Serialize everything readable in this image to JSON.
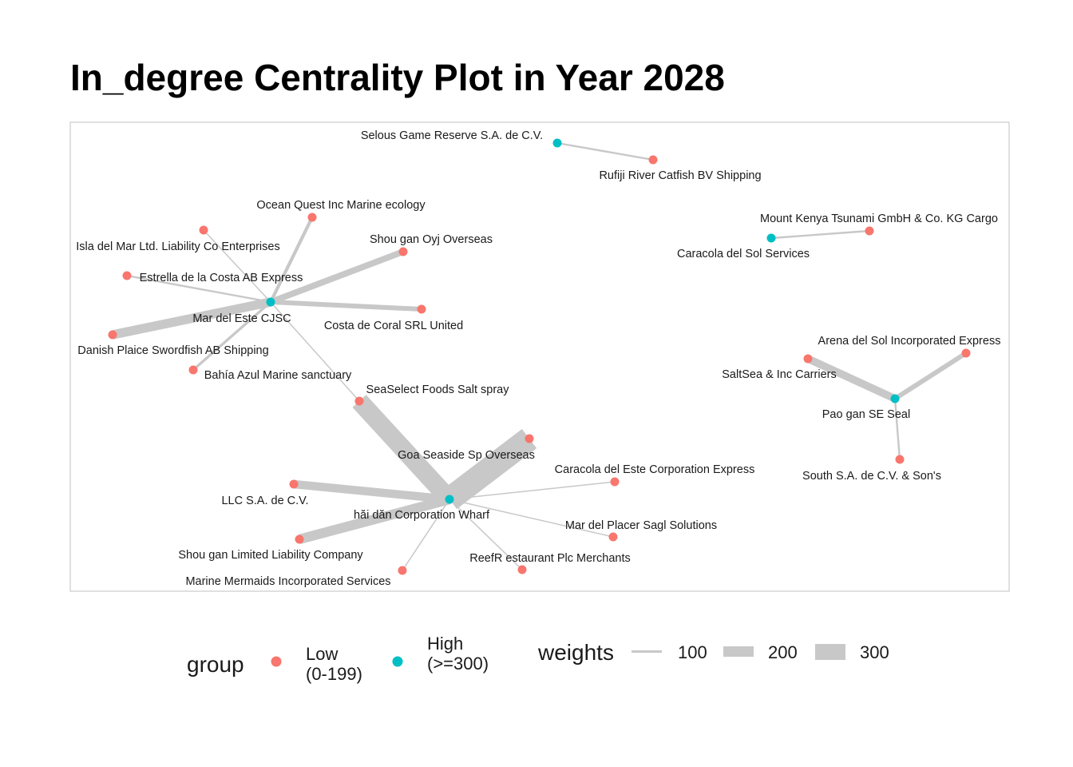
{
  "title": "In_degree Centrality Plot in Year 2028",
  "colors": {
    "low": "#F8766D",
    "high": "#00BFC4",
    "edge": "#C8C8C8",
    "panel_border": "#CCCCCC"
  },
  "network": {
    "nodes": [
      {
        "id": "selous",
        "label": "Selous Game Reserve  S.A. de C.V.",
        "group": "high"
      },
      {
        "id": "rufiji",
        "label": "Rufiji River  Catfish BV Shipping",
        "group": "low"
      },
      {
        "id": "mtkenya",
        "label": "Mount Kenya  Tsunami GmbH & Co. KG Cargo",
        "group": "low"
      },
      {
        "id": "caracola_sol",
        "label": "Caracola del Sol Services",
        "group": "high"
      },
      {
        "id": "ocean_quest",
        "label": "Ocean Quest Inc Marine ecology",
        "group": "low"
      },
      {
        "id": "isla",
        "label": "Isla del Mar Ltd. Liability Co Enterprises",
        "group": "low"
      },
      {
        "id": "shougan_oyj",
        "label": "Shou gan  Oyj Overseas",
        "group": "low"
      },
      {
        "id": "estrella",
        "label": "Estrella de la Costa AB Express",
        "group": "low"
      },
      {
        "id": "mar_este",
        "label": "Mar del Este CJSC",
        "group": "high"
      },
      {
        "id": "costa_coral",
        "label": "Costa de Coral SRL United",
        "group": "low"
      },
      {
        "id": "danish",
        "label": "Danish Plaice Swordfish AB Shipping",
        "group": "low"
      },
      {
        "id": "bahia",
        "label": "Bahía Azul Marine sanctuary",
        "group": "low"
      },
      {
        "id": "seaselect",
        "label": "SeaSelect Foods Salt spray",
        "group": "low"
      },
      {
        "id": "arena",
        "label": "Arena del Sol Incorporated Express",
        "group": "low"
      },
      {
        "id": "saltsea",
        "label": "SaltSea & Inc Carriers",
        "group": "low"
      },
      {
        "id": "pao",
        "label": "Pao gan SE Seal",
        "group": "high"
      },
      {
        "id": "goa",
        "label": "Goa   Seaside Sp Overseas",
        "group": "low"
      },
      {
        "id": "caracola_este",
        "label": "Caracola del Este Corporation Express",
        "group": "low"
      },
      {
        "id": "south",
        "label": "South S.A. de C.V. & Son's",
        "group": "low"
      },
      {
        "id": "llc",
        "label": "LLC S.A. de C.V.",
        "group": "low"
      },
      {
        "id": "haidan",
        "label": "hăi dăn Corporation Wharf",
        "group": "high"
      },
      {
        "id": "mar_placer",
        "label": "Mar del Placer Sagl Solutions",
        "group": "low"
      },
      {
        "id": "shougan_ltd",
        "label": "Shou gan  Limited Liability Company",
        "group": "low"
      },
      {
        "id": "reefr",
        "label": "ReefR estaurant Plc Merchants",
        "group": "low"
      },
      {
        "id": "mermaids",
        "label": "Marine Mermaids Incorporated Services",
        "group": "low"
      }
    ],
    "edges": [
      {
        "from": "rufiji",
        "to": "selous",
        "weight": 20
      },
      {
        "from": "mtkenya",
        "to": "caracola_sol",
        "weight": 20
      },
      {
        "from": "ocean_quest",
        "to": "mar_este",
        "weight": 40
      },
      {
        "from": "isla",
        "to": "mar_este",
        "weight": 10
      },
      {
        "from": "shougan_oyj",
        "to": "mar_este",
        "weight": 80
      },
      {
        "from": "estrella",
        "to": "mar_este",
        "weight": 20
      },
      {
        "from": "costa_coral",
        "to": "mar_este",
        "weight": 60
      },
      {
        "from": "danish",
        "to": "mar_este",
        "weight": 120
      },
      {
        "from": "bahia",
        "to": "mar_este",
        "weight": 30
      },
      {
        "from": "seaselect",
        "to": "mar_este",
        "weight": 10
      },
      {
        "from": "seaselect",
        "to": "haidan",
        "weight": 250
      },
      {
        "from": "goa",
        "to": "haidan",
        "weight": 330
      },
      {
        "from": "caracola_este",
        "to": "haidan",
        "weight": 10
      },
      {
        "from": "llc",
        "to": "haidan",
        "weight": 110
      },
      {
        "from": "mar_placer",
        "to": "haidan",
        "weight": 10
      },
      {
        "from": "shougan_ltd",
        "to": "haidan",
        "weight": 130
      },
      {
        "from": "reefr",
        "to": "haidan",
        "weight": 10
      },
      {
        "from": "mermaids",
        "to": "haidan",
        "weight": 10
      },
      {
        "from": "arena",
        "to": "pao",
        "weight": 60
      },
      {
        "from": "saltsea",
        "to": "pao",
        "weight": 100
      },
      {
        "from": "south",
        "to": "pao",
        "weight": 20
      }
    ]
  },
  "legend": {
    "group_title": "group",
    "group_items": [
      {
        "key": "low",
        "line1": "Low",
        "line2": "(0-199)"
      },
      {
        "key": "high",
        "line1": "High",
        "line2": "(>=300)"
      }
    ],
    "weights_title": "weights",
    "weight_items": [
      {
        "label": "100",
        "value": 100
      },
      {
        "label": "200",
        "value": 200
      },
      {
        "label": "300",
        "value": 300
      }
    ]
  }
}
